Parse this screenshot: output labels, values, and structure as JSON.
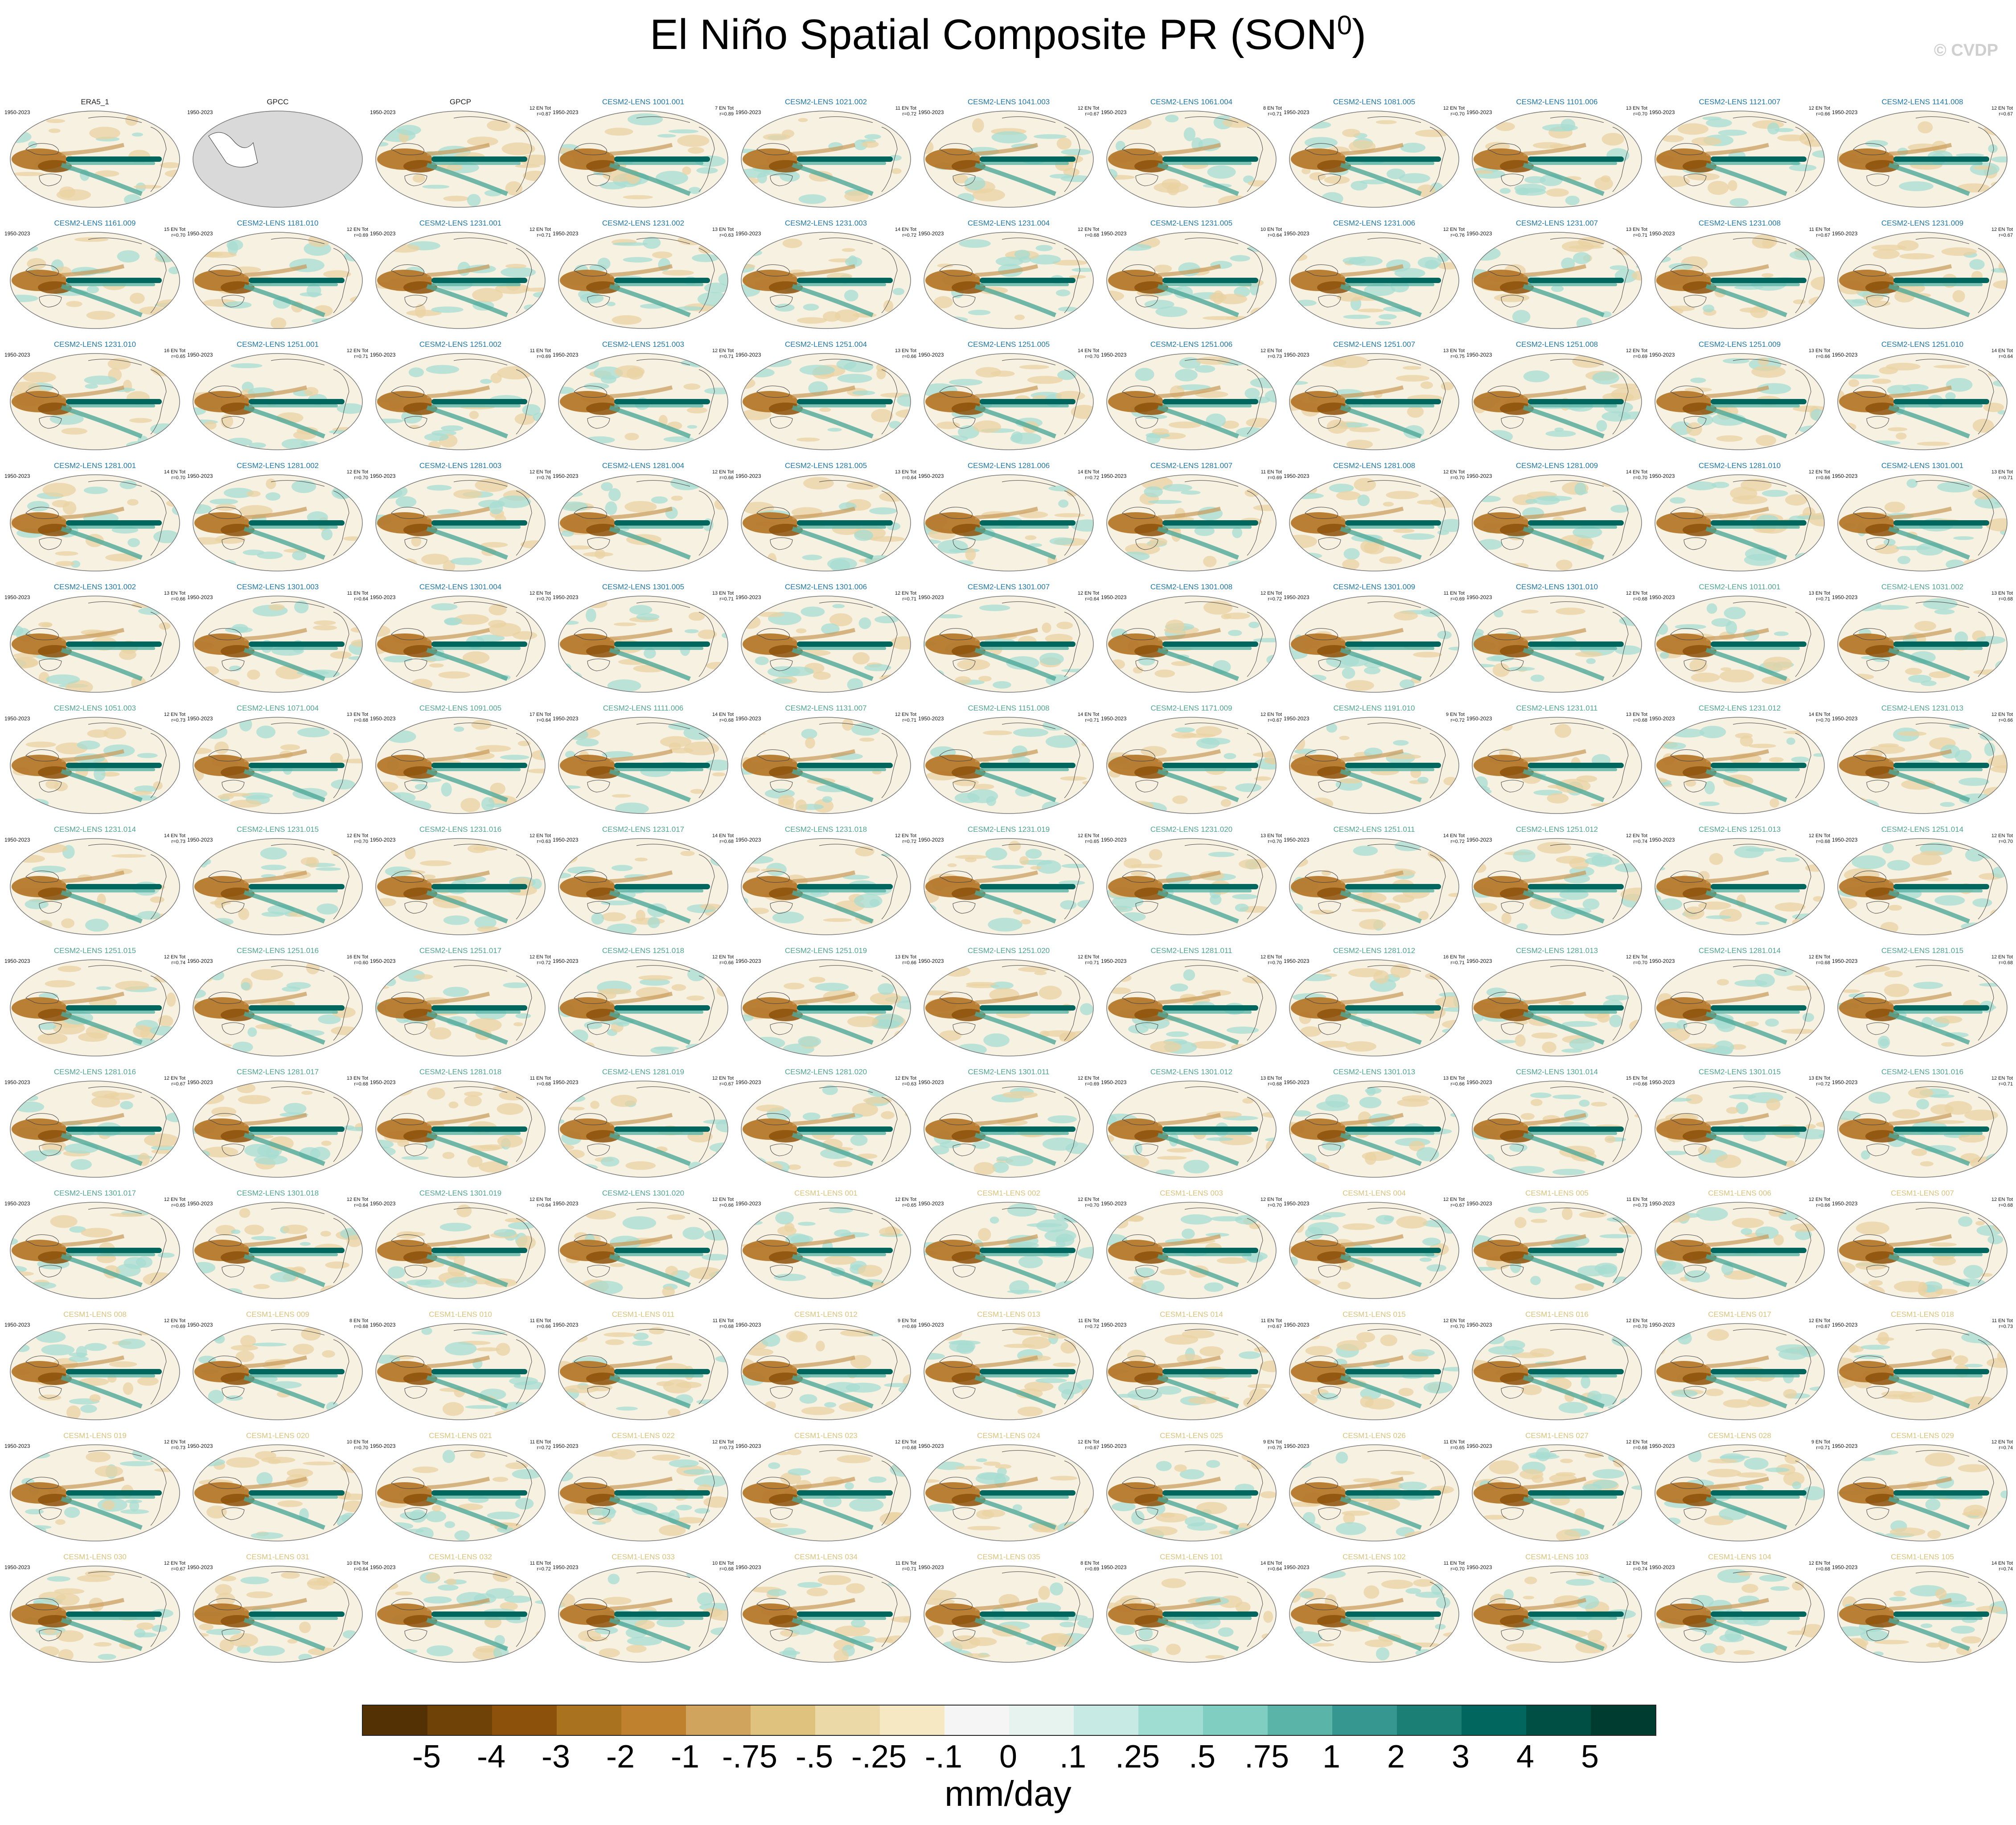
{
  "title": {
    "main": "El Niño Spatial Composite PR (SON",
    "sup": "0",
    "close": ")"
  },
  "copyright": "© CVDP",
  "period": "1950-2023",
  "panels": [
    {
      "name": "ERA5_1",
      "group": "obs",
      "n": "",
      "r": ""
    },
    {
      "name": "GPCC",
      "group": "obs",
      "n": "",
      "r": "",
      "blank": true
    },
    {
      "name": "GPCP",
      "group": "obs",
      "n": "12 EN Tot",
      "r": "r=0.87"
    },
    {
      "name": "CESM2-LENS 1001.001",
      "group": "c2",
      "n": "7 EN Tot",
      "r": "r=0.89"
    },
    {
      "name": "CESM2-LENS 1021.002",
      "group": "c2",
      "n": "11 EN Tot",
      "r": "r=0.72"
    },
    {
      "name": "CESM2-LENS 1041.003",
      "group": "c2",
      "n": "12 EN Tot",
      "r": "r=0.67"
    },
    {
      "name": "CESM2-LENS 1061.004",
      "group": "c2",
      "n": "8 EN Tot",
      "r": "r=0.71"
    },
    {
      "name": "CESM2-LENS 1081.005",
      "group": "c2",
      "n": "12 EN Tot",
      "r": "r=0.70"
    },
    {
      "name": "CESM2-LENS 1101.006",
      "group": "c2",
      "n": "13 EN Tot",
      "r": "r=0.70"
    },
    {
      "name": "CESM2-LENS 1121.007",
      "group": "c2",
      "n": "12 EN Tot",
      "r": "r=0.66"
    },
    {
      "name": "CESM2-LENS 1141.008",
      "group": "c2",
      "n": "12 EN Tot",
      "r": "r=0.67"
    },
    {
      "name": "CESM2-LENS 1161.009",
      "group": "c2",
      "n": "15 EN Tot",
      "r": "r=0.70"
    },
    {
      "name": "CESM2-LENS 1181.010",
      "group": "c2",
      "n": "12 EN Tot",
      "r": "r=0.69"
    },
    {
      "name": "CESM2-LENS 1231.001",
      "group": "c2",
      "n": "12 EN Tot",
      "r": "r=0.71"
    },
    {
      "name": "CESM2-LENS 1231.002",
      "group": "c2",
      "n": "13 EN Tot",
      "r": "r=0.63"
    },
    {
      "name": "CESM2-LENS 1231.003",
      "group": "c2",
      "n": "14 EN Tot",
      "r": "r=0.72"
    },
    {
      "name": "CESM2-LENS 1231.004",
      "group": "c2",
      "n": "12 EN Tot",
      "r": "r=0.68"
    },
    {
      "name": "CESM2-LENS 1231.005",
      "group": "c2",
      "n": "10 EN Tot",
      "r": "r=0.64"
    },
    {
      "name": "CESM2-LENS 1231.006",
      "group": "c2",
      "n": "12 EN Tot",
      "r": "r=0.76"
    },
    {
      "name": "CESM2-LENS 1231.007",
      "group": "c2",
      "n": "13 EN Tot",
      "r": "r=0.71"
    },
    {
      "name": "CESM2-LENS 1231.008",
      "group": "c2",
      "n": "11 EN Tot",
      "r": "r=0.67"
    },
    {
      "name": "CESM2-LENS 1231.009",
      "group": "c2",
      "n": "12 EN Tot",
      "r": "r=0.67"
    },
    {
      "name": "CESM2-LENS 1231.010",
      "group": "c2",
      "n": "16 EN Tot",
      "r": "r=0.65"
    },
    {
      "name": "CESM2-LENS 1251.001",
      "group": "c2",
      "n": "12 EN Tot",
      "r": "r=0.71"
    },
    {
      "name": "CESM2-LENS 1251.002",
      "group": "c2",
      "n": "11 EN Tot",
      "r": "r=0.69"
    },
    {
      "name": "CESM2-LENS 1251.003",
      "group": "c2",
      "n": "12 EN Tot",
      "r": "r=0.71"
    },
    {
      "name": "CESM2-LENS 1251.004",
      "group": "c2",
      "n": "13 EN Tot",
      "r": "r=0.66"
    },
    {
      "name": "CESM2-LENS 1251.005",
      "group": "c2",
      "n": "14 EN Tot",
      "r": "r=0.70"
    },
    {
      "name": "CESM2-LENS 1251.006",
      "group": "c2",
      "n": "12 EN Tot",
      "r": "r=0.73"
    },
    {
      "name": "CESM2-LENS 1251.007",
      "group": "c2",
      "n": "13 EN Tot",
      "r": "r=0.75"
    },
    {
      "name": "CESM2-LENS 1251.008",
      "group": "c2",
      "n": "12 EN Tot",
      "r": "r=0.69"
    },
    {
      "name": "CESM2-LENS 1251.009",
      "group": "c2",
      "n": "13 EN Tot",
      "r": "r=0.66"
    },
    {
      "name": "CESM2-LENS 1251.010",
      "group": "c2",
      "n": "14 EN Tot",
      "r": "r=0.64"
    },
    {
      "name": "CESM2-LENS 1281.001",
      "group": "c2",
      "n": "14 EN Tot",
      "r": "r=0.70"
    },
    {
      "name": "CESM2-LENS 1281.002",
      "group": "c2",
      "n": "12 EN Tot",
      "r": "r=0.70"
    },
    {
      "name": "CESM2-LENS 1281.003",
      "group": "c2",
      "n": "12 EN Tot",
      "r": "r=0.76"
    },
    {
      "name": "CESM2-LENS 1281.004",
      "group": "c2",
      "n": "12 EN Tot",
      "r": "r=0.66"
    },
    {
      "name": "CESM2-LENS 1281.005",
      "group": "c2",
      "n": "13 EN Tot",
      "r": "r=0.64"
    },
    {
      "name": "CESM2-LENS 1281.006",
      "group": "c2",
      "n": "14 EN Tot",
      "r": "r=0.72"
    },
    {
      "name": "CESM2-LENS 1281.007",
      "group": "c2",
      "n": "11 EN Tot",
      "r": "r=0.69"
    },
    {
      "name": "CESM2-LENS 1281.008",
      "group": "c2",
      "n": "12 EN Tot",
      "r": "r=0.70"
    },
    {
      "name": "CESM2-LENS 1281.009",
      "group": "c2",
      "n": "14 EN Tot",
      "r": "r=0.70"
    },
    {
      "name": "CESM2-LENS 1281.010",
      "group": "c2",
      "n": "12 EN Tot",
      "r": "r=0.66"
    },
    {
      "name": "CESM2-LENS 1301.001",
      "group": "c2",
      "n": "13 EN Tot",
      "r": "r=0.71"
    },
    {
      "name": "CESM2-LENS 1301.002",
      "group": "c2",
      "n": "13 EN Tot",
      "r": "r=0.66"
    },
    {
      "name": "CESM2-LENS 1301.003",
      "group": "c2",
      "n": "11 EN Tot",
      "r": "r=0.64"
    },
    {
      "name": "CESM2-LENS 1301.004",
      "group": "c2",
      "n": "12 EN Tot",
      "r": "r=0.70"
    },
    {
      "name": "CESM2-LENS 1301.005",
      "group": "c2",
      "n": "13 EN Tot",
      "r": "r=0.71"
    },
    {
      "name": "CESM2-LENS 1301.006",
      "group": "c2",
      "n": "12 EN Tot",
      "r": "r=0.71"
    },
    {
      "name": "CESM2-LENS 1301.007",
      "group": "c2",
      "n": "12 EN Tot",
      "r": "r=0.64"
    },
    {
      "name": "CESM2-LENS 1301.008",
      "group": "c2",
      "n": "12 EN Tot",
      "r": "r=0.72"
    },
    {
      "name": "CESM2-LENS 1301.009",
      "group": "c2",
      "n": "11 EN Tot",
      "r": "r=0.69"
    },
    {
      "name": "CESM2-LENS 1301.010",
      "group": "c2",
      "n": "12 EN Tot",
      "r": "r=0.68"
    },
    {
      "name": "CESM2-LENS 1011.001",
      "group": "c2b",
      "n": "13 EN Tot",
      "r": "r=0.71"
    },
    {
      "name": "CESM2-LENS 1031.002",
      "group": "c2b",
      "n": "13 EN Tot",
      "r": "r=0.68"
    },
    {
      "name": "CESM2-LENS 1051.003",
      "group": "c2b",
      "n": "12 EN Tot",
      "r": "r=0.73"
    },
    {
      "name": "CESM2-LENS 1071.004",
      "group": "c2b",
      "n": "13 EN Tot",
      "r": "r=0.68"
    },
    {
      "name": "CESM2-LENS 1091.005",
      "group": "c2b",
      "n": "17 EN Tot",
      "r": "r=0.64"
    },
    {
      "name": "CESM2-LENS 1111.006",
      "group": "c2b",
      "n": "14 EN Tot",
      "r": "r=0.68"
    },
    {
      "name": "CESM2-LENS 1131.007",
      "group": "c2b",
      "n": "12 EN Tot",
      "r": "r=0.71"
    },
    {
      "name": "CESM2-LENS 1151.008",
      "group": "c2b",
      "n": "14 EN Tot",
      "r": "r=0.71"
    },
    {
      "name": "CESM2-LENS 1171.009",
      "group": "c2b",
      "n": "12 EN Tot",
      "r": "r=0.67"
    },
    {
      "name": "CESM2-LENS 1191.010",
      "group": "c2b",
      "n": "9 EN Tot",
      "r": "r=0.72"
    },
    {
      "name": "CESM2-LENS 1231.011",
      "group": "c2b",
      "n": "13 EN Tot",
      "r": "r=0.68"
    },
    {
      "name": "CESM2-LENS 1231.012",
      "group": "c2b",
      "n": "14 EN Tot",
      "r": "r=0.70"
    },
    {
      "name": "CESM2-LENS 1231.013",
      "group": "c2b",
      "n": "12 EN Tot",
      "r": "r=0.66"
    },
    {
      "name": "CESM2-LENS 1231.014",
      "group": "c2b",
      "n": "14 EN Tot",
      "r": "r=0.73"
    },
    {
      "name": "CESM2-LENS 1231.015",
      "group": "c2b",
      "n": "12 EN Tot",
      "r": "r=0.70"
    },
    {
      "name": "CESM2-LENS 1231.016",
      "group": "c2b",
      "n": "12 EN Tot",
      "r": "r=0.63"
    },
    {
      "name": "CESM2-LENS 1231.017",
      "group": "c2b",
      "n": "14 EN Tot",
      "r": "r=0.68"
    },
    {
      "name": "CESM2-LENS 1231.018",
      "group": "c2b",
      "n": "12 EN Tot",
      "r": "r=0.72"
    },
    {
      "name": "CESM2-LENS 1231.019",
      "group": "c2b",
      "n": "12 EN Tot",
      "r": "r=0.65"
    },
    {
      "name": "CESM2-LENS 1231.020",
      "group": "c2b",
      "n": "13 EN Tot",
      "r": "r=0.70"
    },
    {
      "name": "CESM2-LENS 1251.011",
      "group": "c2b",
      "n": "14 EN Tot",
      "r": "r=0.72"
    },
    {
      "name": "CESM2-LENS 1251.012",
      "group": "c2b",
      "n": "12 EN Tot",
      "r": "r=0.74"
    },
    {
      "name": "CESM2-LENS 1251.013",
      "group": "c2b",
      "n": "12 EN Tot",
      "r": "r=0.68"
    },
    {
      "name": "CESM2-LENS 1251.014",
      "group": "c2b",
      "n": "12 EN Tot",
      "r": "r=0.70"
    },
    {
      "name": "CESM2-LENS 1251.015",
      "group": "c2b",
      "n": "12 EN Tot",
      "r": "r=0.74"
    },
    {
      "name": "CESM2-LENS 1251.016",
      "group": "c2b",
      "n": "16 EN Tot",
      "r": "r=0.60"
    },
    {
      "name": "CESM2-LENS 1251.017",
      "group": "c2b",
      "n": "12 EN Tot",
      "r": "r=0.72"
    },
    {
      "name": "CESM2-LENS 1251.018",
      "group": "c2b",
      "n": "12 EN Tot",
      "r": "r=0.66"
    },
    {
      "name": "CESM2-LENS 1251.019",
      "group": "c2b",
      "n": "13 EN Tot",
      "r": "r=0.66"
    },
    {
      "name": "CESM2-LENS 1251.020",
      "group": "c2b",
      "n": "12 EN Tot",
      "r": "r=0.71"
    },
    {
      "name": "CESM2-LENS 1281.011",
      "group": "c2b",
      "n": "12 EN Tot",
      "r": "r=0.70"
    },
    {
      "name": "CESM2-LENS 1281.012",
      "group": "c2b",
      "n": "16 EN Tot",
      "r": "r=0.71"
    },
    {
      "name": "CESM2-LENS 1281.013",
      "group": "c2b",
      "n": "12 EN Tot",
      "r": "r=0.70"
    },
    {
      "name": "CESM2-LENS 1281.014",
      "group": "c2b",
      "n": "12 EN Tot",
      "r": "r=0.68"
    },
    {
      "name": "CESM2-LENS 1281.015",
      "group": "c2b",
      "n": "12 EN Tot",
      "r": "r=0.68"
    },
    {
      "name": "CESM2-LENS 1281.016",
      "group": "c2b",
      "n": "12 EN Tot",
      "r": "r=0.67"
    },
    {
      "name": "CESM2-LENS 1281.017",
      "group": "c2b",
      "n": "13 EN Tot",
      "r": "r=0.68"
    },
    {
      "name": "CESM2-LENS 1281.018",
      "group": "c2b",
      "n": "11 EN Tot",
      "r": "r=0.68"
    },
    {
      "name": "CESM2-LENS 1281.019",
      "group": "c2b",
      "n": "12 EN Tot",
      "r": "r=0.67"
    },
    {
      "name": "CESM2-LENS 1281.020",
      "group": "c2b",
      "n": "12 EN Tot",
      "r": "r=0.63"
    },
    {
      "name": "CESM2-LENS 1301.011",
      "group": "c2b",
      "n": "12 EN Tot",
      "r": "r=0.69"
    },
    {
      "name": "CESM2-LENS 1301.012",
      "group": "c2b",
      "n": "13 EN Tot",
      "r": "r=0.68"
    },
    {
      "name": "CESM2-LENS 1301.013",
      "group": "c2b",
      "n": "13 EN Tot",
      "r": "r=0.66"
    },
    {
      "name": "CESM2-LENS 1301.014",
      "group": "c2b",
      "n": "15 EN Tot",
      "r": "r=0.66"
    },
    {
      "name": "CESM2-LENS 1301.015",
      "group": "c2b",
      "n": "13 EN Tot",
      "r": "r=0.72"
    },
    {
      "name": "CESM2-LENS 1301.016",
      "group": "c2b",
      "n": "12 EN Tot",
      "r": "r=0.71"
    },
    {
      "name": "CESM2-LENS 1301.017",
      "group": "c2b",
      "n": "12 EN Tot",
      "r": "r=0.65"
    },
    {
      "name": "CESM2-LENS 1301.018",
      "group": "c2b",
      "n": "12 EN Tot",
      "r": "r=0.64"
    },
    {
      "name": "CESM2-LENS 1301.019",
      "group": "c2b",
      "n": "12 EN Tot",
      "r": "r=0.64"
    },
    {
      "name": "CESM2-LENS 1301.020",
      "group": "c2b",
      "n": "12 EN Tot",
      "r": "r=0.66"
    },
    {
      "name": "CESM1-LENS 001",
      "group": "c1",
      "n": "12 EN Tot",
      "r": "r=0.65"
    },
    {
      "name": "CESM1-LENS 002",
      "group": "c1",
      "n": "12 EN Tot",
      "r": "r=0.70"
    },
    {
      "name": "CESM1-LENS 003",
      "group": "c1",
      "n": "12 EN Tot",
      "r": "r=0.70"
    },
    {
      "name": "CESM1-LENS 004",
      "group": "c1",
      "n": "12 EN Tot",
      "r": "r=0.67"
    },
    {
      "name": "CESM1-LENS 005",
      "group": "c1",
      "n": "11 EN Tot",
      "r": "r=0.73"
    },
    {
      "name": "CESM1-LENS 006",
      "group": "c1",
      "n": "12 EN Tot",
      "r": "r=0.66"
    },
    {
      "name": "CESM1-LENS 007",
      "group": "c1",
      "n": "12 EN Tot",
      "r": "r=0.68"
    },
    {
      "name": "CESM1-LENS 008",
      "group": "c1",
      "n": "12 EN Tot",
      "r": "r=0.69"
    },
    {
      "name": "CESM1-LENS 009",
      "group": "c1",
      "n": "8 EN Tot",
      "r": "r=0.68"
    },
    {
      "name": "CESM1-LENS 010",
      "group": "c1",
      "n": "11 EN Tot",
      "r": "r=0.66"
    },
    {
      "name": "CESM1-LENS 011",
      "group": "c1",
      "n": "11 EN Tot",
      "r": "r=0.68"
    },
    {
      "name": "CESM1-LENS 012",
      "group": "c1",
      "n": "9 EN Tot",
      "r": "r=0.69"
    },
    {
      "name": "CESM1-LENS 013",
      "group": "c1",
      "n": "11 EN Tot",
      "r": "r=0.72"
    },
    {
      "name": "CESM1-LENS 014",
      "group": "c1",
      "n": "11 EN Tot",
      "r": "r=0.67"
    },
    {
      "name": "CESM1-LENS 015",
      "group": "c1",
      "n": "12 EN Tot",
      "r": "r=0.70"
    },
    {
      "name": "CESM1-LENS 016",
      "group": "c1",
      "n": "12 EN Tot",
      "r": "r=0.70"
    },
    {
      "name": "CESM1-LENS 017",
      "group": "c1",
      "n": "12 EN Tot",
      "r": "r=0.67"
    },
    {
      "name": "CESM1-LENS 018",
      "group": "c1",
      "n": "11 EN Tot",
      "r": "r=0.73"
    },
    {
      "name": "CESM1-LENS 019",
      "group": "c1",
      "n": "12 EN Tot",
      "r": "r=0.73"
    },
    {
      "name": "CESM1-LENS 020",
      "group": "c1",
      "n": "10 EN Tot",
      "r": "r=0.70"
    },
    {
      "name": "CESM1-LENS 021",
      "group": "c1",
      "n": "11 EN Tot",
      "r": "r=0.72"
    },
    {
      "name": "CESM1-LENS 022",
      "group": "c1",
      "n": "12 EN Tot",
      "r": "r=0.73"
    },
    {
      "name": "CESM1-LENS 023",
      "group": "c1",
      "n": "12 EN Tot",
      "r": "r=0.68"
    },
    {
      "name": "CESM1-LENS 024",
      "group": "c1",
      "n": "12 EN Tot",
      "r": "r=0.67"
    },
    {
      "name": "CESM1-LENS 025",
      "group": "c1",
      "n": "9 EN Tot",
      "r": "r=0.75"
    },
    {
      "name": "CESM1-LENS 026",
      "group": "c1",
      "n": "11 EN Tot",
      "r": "r=0.65"
    },
    {
      "name": "CESM1-LENS 027",
      "group": "c1",
      "n": "12 EN Tot",
      "r": "r=0.68"
    },
    {
      "name": "CESM1-LENS 028",
      "group": "c1",
      "n": "9 EN Tot",
      "r": "r=0.71"
    },
    {
      "name": "CESM1-LENS 029",
      "group": "c1",
      "n": "12 EN Tot",
      "r": "r=0.74"
    },
    {
      "name": "CESM1-LENS 030",
      "group": "c1",
      "n": "12 EN Tot",
      "r": "r=0.67"
    },
    {
      "name": "CESM1-LENS 031",
      "group": "c1",
      "n": "10 EN Tot",
      "r": "r=0.64"
    },
    {
      "name": "CESM1-LENS 032",
      "group": "c1",
      "n": "11 EN Tot",
      "r": "r=0.72"
    },
    {
      "name": "CESM1-LENS 033",
      "group": "c1",
      "n": "10 EN Tot",
      "r": "r=0.68"
    },
    {
      "name": "CESM1-LENS 034",
      "group": "c1",
      "n": "11 EN Tot",
      "r": "r=0.71"
    },
    {
      "name": "CESM1-LENS 035",
      "group": "c1",
      "n": "8 EN Tot",
      "r": "r=0.69"
    },
    {
      "name": "CESM1-LENS 101",
      "group": "c1",
      "n": "14 EN Tot",
      "r": "r=0.64"
    },
    {
      "name": "CESM1-LENS 102",
      "group": "c1",
      "n": "11 EN Tot",
      "r": "r=0.70"
    },
    {
      "name": "CESM1-LENS 103",
      "group": "c1",
      "n": "12 EN Tot",
      "r": "r=0.74"
    },
    {
      "name": "CESM1-LENS 104",
      "group": "c1",
      "n": "12 EN Tot",
      "r": "r=0.68"
    },
    {
      "name": "CESM1-LENS 105",
      "group": "c1",
      "n": "14 EN Tot",
      "r": "r=0.74"
    }
  ],
  "colorbar": {
    "labels": [
      "-5",
      "-4",
      "-3",
      "-2",
      "-1",
      "-.75",
      "-.5",
      "-.25",
      "-.1",
      "0",
      ".1",
      ".25",
      ".5",
      ".75",
      "1",
      "2",
      "3",
      "4",
      "5"
    ],
    "colors": [
      "#543005",
      "#6f4208",
      "#8c510a",
      "#a8721f",
      "#bf812d",
      "#d1a45e",
      "#dfc27d",
      "#ecd9a8",
      "#f6e8c3",
      "#f5f5f5",
      "#e6f3ef",
      "#c7eae5",
      "#9fdcd1",
      "#80cdc1",
      "#5ab4a8",
      "#35978f",
      "#1b7f76",
      "#01665e",
      "#004f45",
      "#003c30"
    ],
    "units": "mm/day"
  }
}
